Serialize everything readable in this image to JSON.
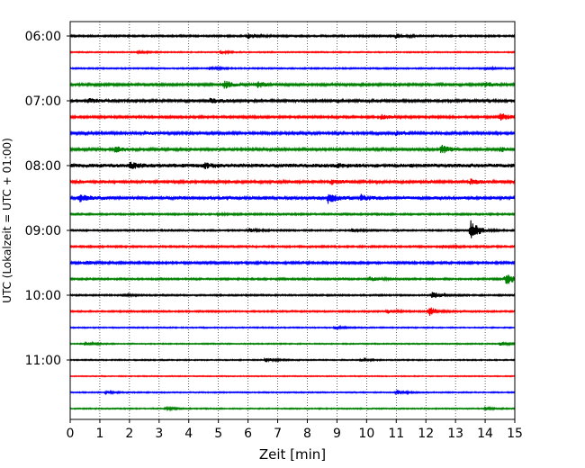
{
  "chart_data": {
    "type": "line",
    "subtype": "seismogram-helicorder",
    "xlabel": "Zeit  [min]",
    "ylabel": "UTC (Lokalzeit = UTC + 01:00)",
    "xlim": [
      0,
      15
    ],
    "x_ticks": [
      "0",
      "1",
      "2",
      "3",
      "4",
      "5",
      "6",
      "7",
      "8",
      "9",
      "10",
      "11",
      "12",
      "13",
      "14",
      "15"
    ],
    "y_tick_labels": [
      "06:00",
      "07:00",
      "08:00",
      "09:00",
      "10:00",
      "11:00"
    ],
    "grid": "vertical dotted",
    "trace_interval_minutes": 15,
    "trace_colors": [
      "#000000",
      "#ff0000",
      "#0000ff",
      "#008000"
    ],
    "traces": [
      {
        "start": "06:00",
        "color": "#000000",
        "noise": 0.9,
        "events": [
          [
            6.0,
            3.5
          ],
          [
            11.0,
            2.2
          ]
        ]
      },
      {
        "start": "06:15",
        "color": "#ff0000",
        "noise": 0.6,
        "events": [
          [
            2.3,
            1.5
          ],
          [
            5.1,
            1.3
          ]
        ]
      },
      {
        "start": "06:30",
        "color": "#0000ff",
        "noise": 0.7,
        "events": [
          [
            4.7,
            1.8
          ],
          [
            14.0,
            1.5
          ]
        ]
      },
      {
        "start": "06:45",
        "color": "#008000",
        "noise": 1.2,
        "events": [
          [
            5.2,
            4.5
          ],
          [
            6.3,
            3.5
          ],
          [
            14.0,
            3.0
          ]
        ]
      },
      {
        "start": "07:00",
        "color": "#000000",
        "noise": 1.6,
        "events": [
          [
            0.6,
            2.0
          ],
          [
            4.7,
            2.0
          ]
        ]
      },
      {
        "start": "07:15",
        "color": "#ff0000",
        "noise": 1.1,
        "events": [
          [
            10.5,
            2.5
          ],
          [
            14.5,
            4.5
          ]
        ]
      },
      {
        "start": "07:30",
        "color": "#0000ff",
        "noise": 1.3,
        "events": [
          [
            2.5,
            2.0
          ],
          [
            11.0,
            2.0
          ]
        ]
      },
      {
        "start": "07:45",
        "color": "#008000",
        "noise": 1.3,
        "events": [
          [
            1.5,
            3.5
          ],
          [
            12.5,
            5.0
          ],
          [
            14.5,
            2.5
          ]
        ]
      },
      {
        "start": "08:00",
        "color": "#000000",
        "noise": 2.0,
        "events": [
          [
            2.0,
            3.5
          ],
          [
            4.5,
            2.5
          ],
          [
            9.0,
            1.5
          ]
        ]
      },
      {
        "start": "08:15",
        "color": "#ff0000",
        "noise": 1.6,
        "events": [
          [
            8.8,
            2.5
          ],
          [
            13.5,
            2.5
          ]
        ]
      },
      {
        "start": "08:30",
        "color": "#0000ff",
        "noise": 1.8,
        "events": [
          [
            0.3,
            3.5
          ],
          [
            8.7,
            5.0
          ],
          [
            9.8,
            3.0
          ]
        ]
      },
      {
        "start": "08:45",
        "color": "#008000",
        "noise": 0.9,
        "events": [
          [
            5.0,
            1.0
          ]
        ]
      },
      {
        "start": "09:00",
        "color": "#000000",
        "noise": 0.8,
        "events": [
          [
            6.0,
            2.5
          ],
          [
            13.5,
            12.0
          ],
          [
            9.5,
            1.5
          ]
        ]
      },
      {
        "start": "09:15",
        "color": "#ff0000",
        "noise": 0.9,
        "events": [
          [
            12.5,
            2.0
          ]
        ]
      },
      {
        "start": "09:30",
        "color": "#0000ff",
        "noise": 1.1,
        "events": [
          [
            0.5,
            1.5
          ]
        ]
      },
      {
        "start": "09:45",
        "color": "#008000",
        "noise": 0.9,
        "events": [
          [
            10.1,
            2.5
          ],
          [
            14.7,
            7.0
          ]
        ]
      },
      {
        "start": "10:00",
        "color": "#000000",
        "noise": 0.8,
        "events": [
          [
            12.2,
            4.0
          ],
          [
            1.8,
            1.3
          ]
        ]
      },
      {
        "start": "10:15",
        "color": "#ff0000",
        "noise": 0.8,
        "events": [
          [
            12.1,
            5.0
          ],
          [
            10.7,
            2.0
          ]
        ]
      },
      {
        "start": "10:30",
        "color": "#0000ff",
        "noise": 0.6,
        "events": [
          [
            8.9,
            1.8
          ]
        ]
      },
      {
        "start": "10:45",
        "color": "#008000",
        "noise": 0.6,
        "events": [
          [
            0.5,
            2.0
          ],
          [
            14.5,
            2.0
          ]
        ]
      },
      {
        "start": "11:00",
        "color": "#000000",
        "noise": 0.6,
        "events": [
          [
            6.6,
            2.5
          ],
          [
            9.8,
            1.3
          ]
        ]
      },
      {
        "start": "11:15",
        "color": "#ff0000",
        "noise": 0.5,
        "events": []
      },
      {
        "start": "11:30",
        "color": "#0000ff",
        "noise": 0.6,
        "events": [
          [
            1.2,
            1.5
          ],
          [
            11.0,
            3.0
          ]
        ]
      },
      {
        "start": "11:45",
        "color": "#008000",
        "noise": 0.6,
        "events": [
          [
            3.2,
            1.5
          ],
          [
            14.0,
            1.5
          ]
        ]
      }
    ]
  }
}
